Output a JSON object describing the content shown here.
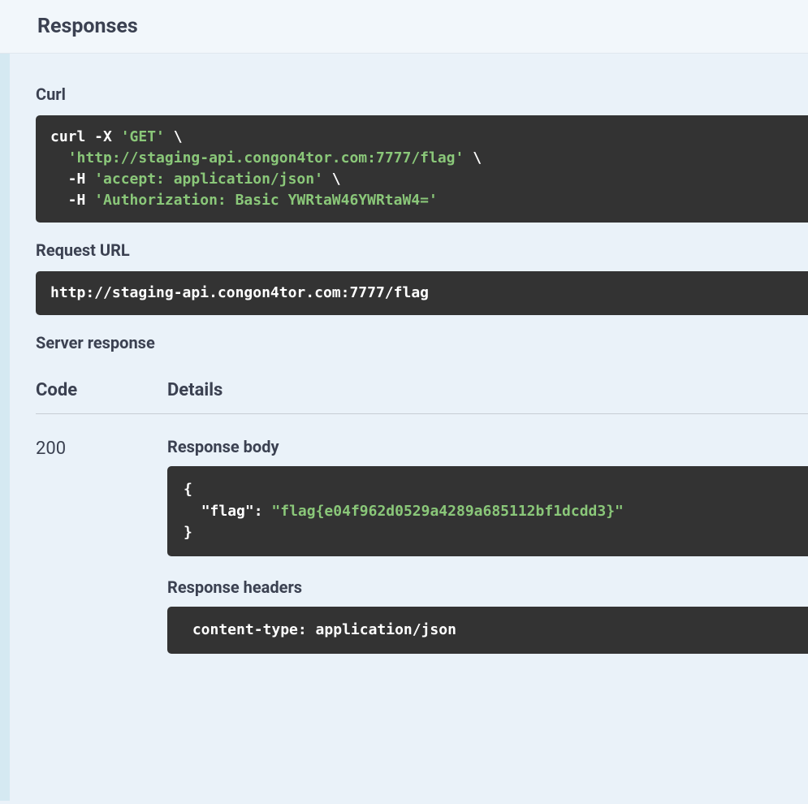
{
  "header": {
    "title": "Responses"
  },
  "curl": {
    "label": "Curl",
    "line1_cmd": "curl -X ",
    "line1_str": "'GET'",
    "line1_cont": " \\",
    "line2_indent": "  ",
    "line2_str": "'http://staging-api.congon4tor.com:7777/flag'",
    "line2_cont": " \\",
    "line3_indent": "  -H ",
    "line3_str": "'accept: application/json'",
    "line3_cont": " \\",
    "line4_indent": "  -H ",
    "line4_str": "'Authorization: Basic YWRtaW46YWRtaW4='"
  },
  "request_url": {
    "label": "Request URL",
    "value": "http://staging-api.congon4tor.com:7777/flag"
  },
  "server_response": {
    "label": "Server response",
    "columns": {
      "code": "Code",
      "details": "Details"
    },
    "row": {
      "code": "200",
      "body_label": "Response body",
      "body_line1": "{",
      "body_line2_indent": "  ",
      "body_key": "\"flag\"",
      "body_colon": ": ",
      "body_value": "\"flag{e04f962d0529a4289a685112bf1dcdd3}\"",
      "body_line3": "}",
      "headers_label": "Response headers",
      "headers_value": " content-type: application/json "
    }
  },
  "style": {
    "page_bg": "#eaf2f9",
    "top_bg": "#f2f7fb",
    "accent_bar": "#d5e9f2",
    "code_bg": "#333333",
    "code_fg": "#ffffff",
    "string_color": "#8ac779",
    "text_color": "#3b4151",
    "divider": "#c7cdd4",
    "mono_font": "DejaVu Sans Mono"
  }
}
